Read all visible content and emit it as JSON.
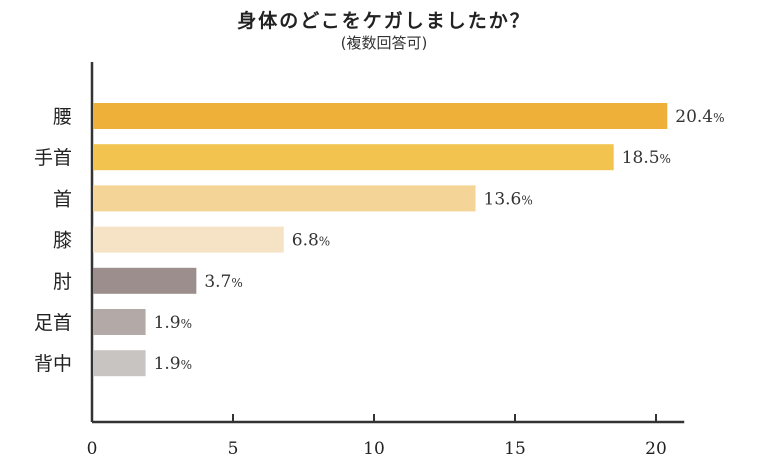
{
  "title": "身体のどこをケガしましたか？",
  "subtitle": "(複数回答可)",
  "chart_data": {
    "type": "bar",
    "orientation": "horizontal",
    "categories": [
      "腰",
      "手首",
      "首",
      "膝",
      "肘",
      "足首",
      "背中"
    ],
    "values": [
      20.4,
      18.5,
      13.6,
      6.8,
      3.7,
      1.9,
      1.9
    ],
    "value_labels": [
      "20.4",
      "18.5",
      "13.6",
      "6.8",
      "3.7",
      "1.9",
      "1.9"
    ],
    "unit": "%",
    "colors": [
      "#EFB03A",
      "#F2C34F",
      "#F5D497",
      "#F6E3C6",
      "#9C8E8C",
      "#B3A9A7",
      "#C8C4C2"
    ],
    "xlim": [
      0,
      21
    ],
    "xticks": [
      "0",
      "5",
      "10",
      "15",
      "20"
    ],
    "xlabel": "",
    "ylabel": "",
    "grid": false,
    "legend": "none"
  }
}
